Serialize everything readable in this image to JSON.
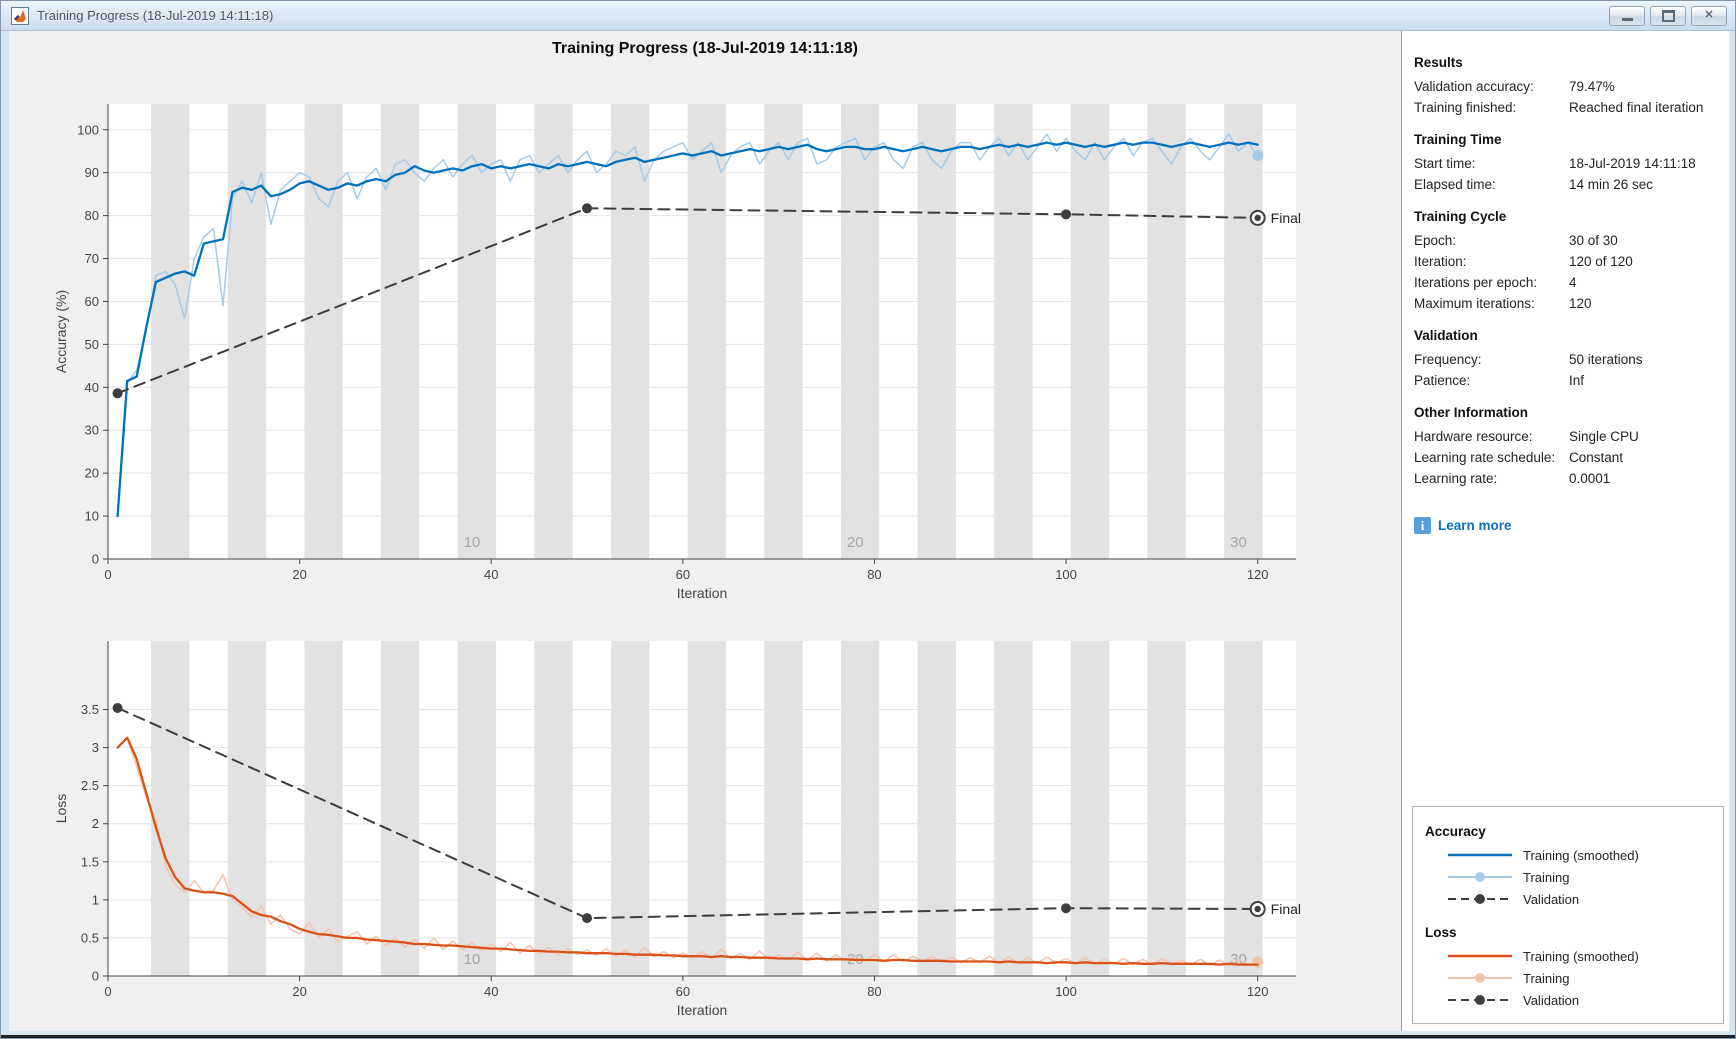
{
  "window": {
    "title": "Training Progress (18-Jul-2019 14:11:18)",
    "controls": {
      "minimize": "minimize",
      "maximize": "maximize",
      "close": "close"
    }
  },
  "header": {
    "title": "Training Progress (18-Jul-2019 14:11:18)"
  },
  "panel": {
    "sections": [
      {
        "title": "Results",
        "rows": [
          [
            "Validation accuracy:",
            "79.47%"
          ],
          [
            "Training finished:",
            "Reached final iteration"
          ]
        ]
      },
      {
        "title": "Training Time",
        "rows": [
          [
            "Start time:",
            "18-Jul-2019 14:11:18"
          ],
          [
            "Elapsed time:",
            "14 min 26 sec"
          ]
        ]
      },
      {
        "title": "Training Cycle",
        "rows": [
          [
            "Epoch:",
            "30 of 30"
          ],
          [
            "Iteration:",
            "120 of 120"
          ],
          [
            "Iterations per epoch:",
            "4"
          ],
          [
            "Maximum iterations:",
            "120"
          ]
        ]
      },
      {
        "title": "Validation",
        "rows": [
          [
            "Frequency:",
            "50 iterations"
          ],
          [
            "Patience:",
            "Inf"
          ]
        ]
      },
      {
        "title": "Other Information",
        "rows": [
          [
            "Hardware resource:",
            "Single CPU"
          ],
          [
            "Learning rate schedule:",
            "Constant"
          ],
          [
            "Learning rate:",
            "0.0001"
          ]
        ]
      }
    ],
    "learn_more": "Learn more",
    "info_icon_glyph": "i"
  },
  "colors": {
    "accuracy_smoothed": "#0072bd",
    "accuracy_raw": "#a5cbe8",
    "loss_smoothed": "#d95319",
    "loss_raw": "#f2c4ad",
    "validation": "#3d3d3d",
    "epoch_band": "#e2e2e2",
    "link_blue": "#0c6fc0"
  },
  "legend": {
    "groups": [
      {
        "title": "Accuracy",
        "items": [
          {
            "label": "Training (smoothed)",
            "style": "solid",
            "color": "#0072bd"
          },
          {
            "label": "Training",
            "style": "solid-dot",
            "color": "#a5cbe8"
          },
          {
            "label": "Validation",
            "style": "dashed-dot",
            "color": "#3d3d3d"
          }
        ]
      },
      {
        "title": "Loss",
        "items": [
          {
            "label": "Training (smoothed)",
            "style": "solid",
            "color": "#d95319"
          },
          {
            "label": "Training",
            "style": "solid-dot",
            "color": "#f2c4ad"
          },
          {
            "label": "Validation",
            "style": "dashed-dot",
            "color": "#3d3d3d"
          }
        ]
      }
    ]
  },
  "chart_data": [
    {
      "type": "line",
      "name": "accuracy",
      "ylabel": "Accuracy (%)",
      "xlabel": "Iteration",
      "xlim": [
        0,
        124
      ],
      "ylim": [
        0,
        106
      ],
      "xticks": [
        0,
        20,
        40,
        60,
        80,
        100,
        120
      ],
      "yticks": [
        0,
        10,
        20,
        30,
        40,
        50,
        60,
        70,
        80,
        90,
        100
      ],
      "ytick_labels": [
        "0",
        "10",
        "20",
        "30",
        "40",
        "50",
        "60",
        "70",
        "80",
        "90",
        "100"
      ],
      "epochs": 30,
      "iterations_per_epoch": 4,
      "epoch_labels": [
        10,
        20,
        30
      ],
      "final_label": "Final",
      "series": [
        {
          "name": "Training",
          "color": "#a5cbe8",
          "width": 1.5,
          "style": "solid",
          "end_marker": true,
          "x_start": 1,
          "x_step": 1,
          "y": [
            10,
            41,
            44,
            53,
            66,
            67,
            64,
            56,
            70,
            75,
            77,
            59,
            84,
            88,
            83,
            90,
            78,
            86,
            88,
            90,
            89,
            84,
            82,
            88,
            90,
            84,
            89,
            91,
            86,
            92,
            93,
            90,
            88,
            91,
            93,
            89,
            92,
            94,
            90,
            92,
            93,
            88,
            93,
            94,
            90,
            92,
            94,
            90,
            93,
            95,
            90,
            92,
            95,
            94,
            96,
            88,
            93,
            95,
            96,
            97,
            93,
            95,
            97,
            90,
            94,
            96,
            97,
            92,
            95,
            97,
            93,
            97,
            98,
            92,
            93,
            96,
            97,
            98,
            93,
            96,
            97,
            93,
            91,
            96,
            97,
            93,
            91,
            95,
            97,
            97,
            93,
            96,
            98,
            94,
            97,
            93,
            96,
            99,
            95,
            98,
            95,
            93,
            97,
            93,
            96,
            98,
            94,
            97,
            98,
            95,
            92,
            96,
            98,
            95,
            93,
            96,
            99,
            95,
            97,
            94
          ]
        },
        {
          "name": "Training (smoothed)",
          "color": "#0072bd",
          "width": 2.3,
          "style": "solid",
          "x_start": 1,
          "x_step": 1,
          "y": [
            10,
            41.5,
            42.5,
            54,
            64.5,
            65.5,
            66.5,
            67,
            66,
            73.5,
            74,
            74.5,
            85.5,
            86.5,
            86,
            87,
            84.5,
            85,
            86,
            87.5,
            88,
            87,
            86,
            86.5,
            87.5,
            87,
            88,
            88.5,
            88,
            89.5,
            90,
            91.5,
            90.5,
            90,
            90.5,
            91,
            90.5,
            91.5,
            92,
            91,
            91.5,
            91,
            91.5,
            92,
            91.5,
            91,
            92,
            91.5,
            92,
            92.5,
            92,
            91.5,
            92.5,
            93,
            93.5,
            92.5,
            93,
            93.5,
            94,
            94.5,
            94,
            94.5,
            95,
            94,
            94.5,
            95,
            95.5,
            95,
            95.5,
            96,
            95.5,
            96,
            96.5,
            95.5,
            95,
            95.5,
            96,
            96,
            95.5,
            95.5,
            96,
            95.5,
            95,
            95.5,
            96,
            95.5,
            95,
            95.5,
            96,
            96,
            95.5,
            96,
            96.5,
            96,
            96.5,
            96,
            96.5,
            97,
            96.5,
            97,
            96.5,
            96,
            96.5,
            96,
            96.5,
            97,
            96.5,
            97,
            97,
            96.5,
            96,
            96.5,
            97,
            96.5,
            96,
            96.5,
            97,
            96.5,
            97,
            96.5
          ]
        },
        {
          "name": "Validation",
          "color": "#3d3d3d",
          "width": 2,
          "style": "dashed",
          "markers": true,
          "final_marker": true,
          "x": [
            1,
            50,
            100,
            120
          ],
          "y": [
            38.6,
            81.7,
            80.3,
            79.47
          ]
        }
      ]
    },
    {
      "type": "line",
      "name": "loss",
      "ylabel": "Loss",
      "xlabel": "Iteration",
      "xlim": [
        0,
        124
      ],
      "ylim": [
        0,
        4.4
      ],
      "xticks": [
        0,
        20,
        40,
        60,
        80,
        100,
        120
      ],
      "yticks": [
        0,
        0.5,
        1,
        1.5,
        2,
        2.5,
        3,
        3.5
      ],
      "ytick_labels": [
        "0",
        "0.5",
        "1",
        "1.5",
        "2",
        "2.5",
        "3",
        "3.5"
      ],
      "epochs": 30,
      "iterations_per_epoch": 4,
      "epoch_labels": [
        10,
        20,
        30
      ],
      "final_label": "Final",
      "series": [
        {
          "name": "Training",
          "color": "#f2c4ad",
          "width": 1.5,
          "style": "solid",
          "end_marker": true,
          "x_start": 1,
          "x_step": 1,
          "y": [
            3,
            3.13,
            2.75,
            2.35,
            2.05,
            1.45,
            1.2,
            1.1,
            1.25,
            1.1,
            1.12,
            1.33,
            1,
            0.9,
            0.78,
            0.92,
            0.68,
            0.8,
            0.62,
            0.55,
            0.7,
            0.5,
            0.62,
            0.45,
            0.52,
            0.58,
            0.42,
            0.52,
            0.4,
            0.5,
            0.38,
            0.48,
            0.36,
            0.5,
            0.35,
            0.46,
            0.34,
            0.44,
            0.33,
            0.42,
            0.32,
            0.44,
            0.3,
            0.4,
            0.29,
            0.38,
            0.28,
            0.36,
            0.28,
            0.34,
            0.27,
            0.36,
            0.26,
            0.34,
            0.25,
            0.38,
            0.25,
            0.32,
            0.24,
            0.3,
            0.24,
            0.32,
            0.23,
            0.35,
            0.23,
            0.3,
            0.22,
            0.33,
            0.22,
            0.28,
            0.21,
            0.31,
            0.21,
            0.3,
            0.2,
            0.28,
            0.2,
            0.26,
            0.2,
            0.28,
            0.19,
            0.28,
            0.19,
            0.26,
            0.19,
            0.26,
            0.18,
            0.25,
            0.18,
            0.24,
            0.18,
            0.26,
            0.17,
            0.25,
            0.17,
            0.24,
            0.17,
            0.25,
            0.17,
            0.23,
            0.16,
            0.24,
            0.16,
            0.22,
            0.16,
            0.23,
            0.15,
            0.22,
            0.15,
            0.23,
            0.15,
            0.21,
            0.15,
            0.22,
            0.14,
            0.21,
            0.14,
            0.22,
            0.14,
            0.18
          ]
        },
        {
          "name": "Training (smoothed)",
          "color": "#d95319",
          "width": 2.3,
          "style": "solid",
          "x_start": 1,
          "x_step": 1,
          "y": [
            3,
            3.13,
            2.85,
            2.4,
            1.95,
            1.55,
            1.3,
            1.15,
            1.12,
            1.1,
            1.1,
            1.08,
            1.05,
            0.95,
            0.85,
            0.8,
            0.78,
            0.72,
            0.68,
            0.62,
            0.58,
            0.55,
            0.54,
            0.52,
            0.5,
            0.5,
            0.48,
            0.47,
            0.46,
            0.45,
            0.44,
            0.42,
            0.42,
            0.41,
            0.4,
            0.4,
            0.39,
            0.38,
            0.37,
            0.36,
            0.36,
            0.35,
            0.34,
            0.33,
            0.33,
            0.32,
            0.32,
            0.31,
            0.31,
            0.3,
            0.3,
            0.3,
            0.29,
            0.29,
            0.28,
            0.28,
            0.28,
            0.27,
            0.27,
            0.26,
            0.26,
            0.26,
            0.25,
            0.26,
            0.25,
            0.25,
            0.24,
            0.24,
            0.24,
            0.23,
            0.23,
            0.23,
            0.22,
            0.23,
            0.22,
            0.22,
            0.22,
            0.21,
            0.21,
            0.21,
            0.2,
            0.21,
            0.21,
            0.2,
            0.2,
            0.2,
            0.2,
            0.19,
            0.19,
            0.19,
            0.19,
            0.19,
            0.18,
            0.19,
            0.18,
            0.18,
            0.18,
            0.17,
            0.18,
            0.18,
            0.17,
            0.18,
            0.17,
            0.17,
            0.17,
            0.16,
            0.17,
            0.16,
            0.16,
            0.17,
            0.16,
            0.16,
            0.16,
            0.16,
            0.16,
            0.15,
            0.16,
            0.15,
            0.15,
            0.15
          ]
        },
        {
          "name": "Validation",
          "color": "#3d3d3d",
          "width": 2,
          "style": "dashed",
          "markers": true,
          "final_marker": true,
          "x": [
            1,
            50,
            100,
            120
          ],
          "y": [
            3.52,
            0.76,
            0.89,
            0.88
          ]
        }
      ]
    }
  ]
}
